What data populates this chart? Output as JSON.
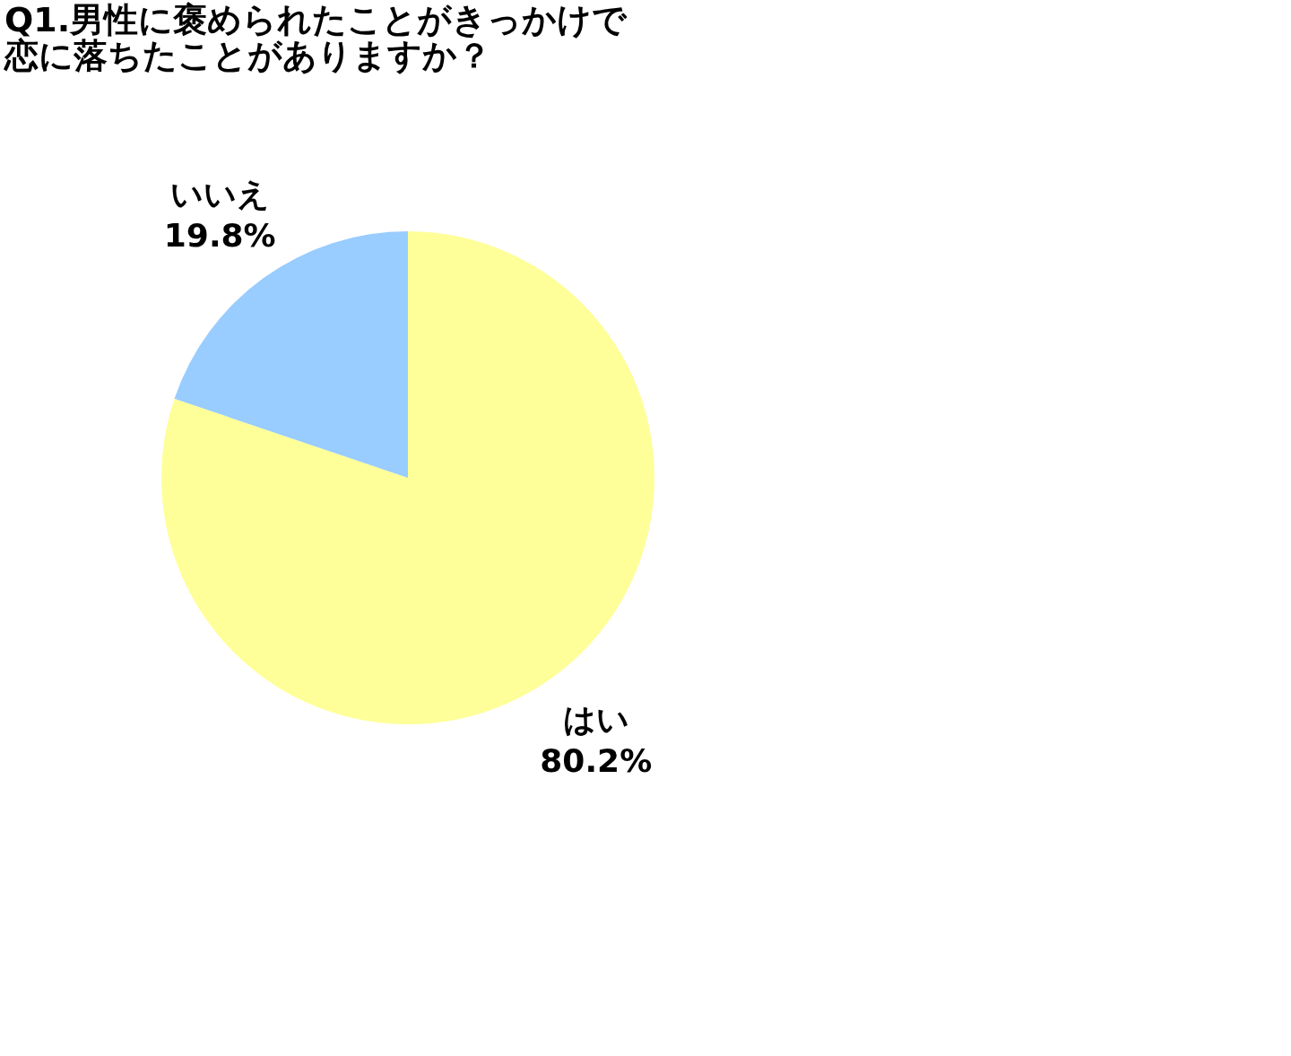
{
  "chart_data": {
    "type": "pie",
    "title": [
      "Q1.男性に褒められたことがきっかけで",
      "恋に落ちたことがありますか？"
    ],
    "categories": [
      "はい",
      "いいえ"
    ],
    "values": [
      80.2,
      19.8
    ],
    "colors": [
      "#ffff99",
      "#99ccff"
    ],
    "value_labels": [
      "80.2%",
      "19.8%"
    ],
    "legend": false
  }
}
